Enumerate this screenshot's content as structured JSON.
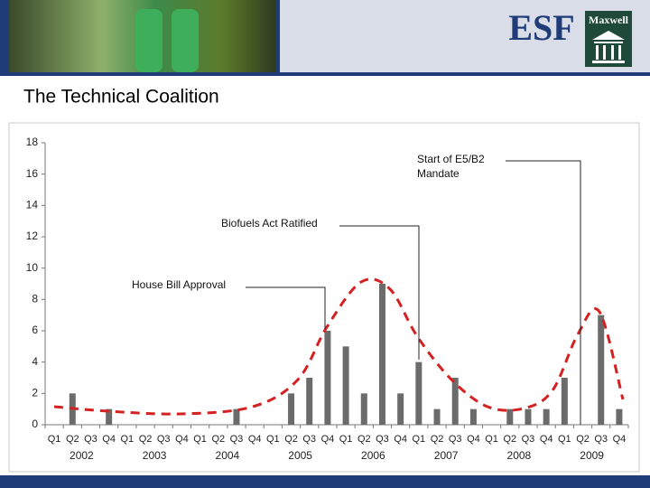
{
  "header": {
    "logo_left": "ESF",
    "logo_right": "Maxwell"
  },
  "slide_title": "The Technical Coalition",
  "chart_data": {
    "type": "bar",
    "categories": [
      "Q1",
      "Q2",
      "Q3",
      "Q4",
      "Q1",
      "Q2",
      "Q3",
      "Q4",
      "Q1",
      "Q2",
      "Q3",
      "Q4",
      "Q1",
      "Q2",
      "Q3",
      "Q4",
      "Q1",
      "Q2",
      "Q3",
      "Q4",
      "Q1",
      "Q2",
      "Q3",
      "Q4",
      "Q1",
      "Q2",
      "Q3",
      "Q4",
      "Q1",
      "Q2",
      "Q3",
      "Q4"
    ],
    "years": [
      "2002",
      "2003",
      "2004",
      "2005",
      "2006",
      "2007",
      "2008",
      "2009"
    ],
    "values": [
      0,
      2,
      0,
      1,
      0,
      0,
      0,
      0,
      0,
      0,
      1,
      0,
      0,
      2,
      3,
      6,
      5,
      2,
      9,
      2,
      4,
      1,
      3,
      1,
      0,
      1,
      1,
      1,
      3,
      0,
      7,
      1
    ],
    "color": "#6b6b6b",
    "ylim": [
      0,
      18
    ],
    "yticks": [
      0,
      2,
      4,
      6,
      8,
      10,
      12,
      14,
      16,
      18
    ],
    "grid": false,
    "annotations": [
      {
        "lines": [
          "House Bill Approval"
        ]
      },
      {
        "lines": [
          "Biofuels Act Ratified"
        ]
      },
      {
        "lines": [
          "Start of E5/B2",
          "Mandate"
        ]
      }
    ]
  }
}
